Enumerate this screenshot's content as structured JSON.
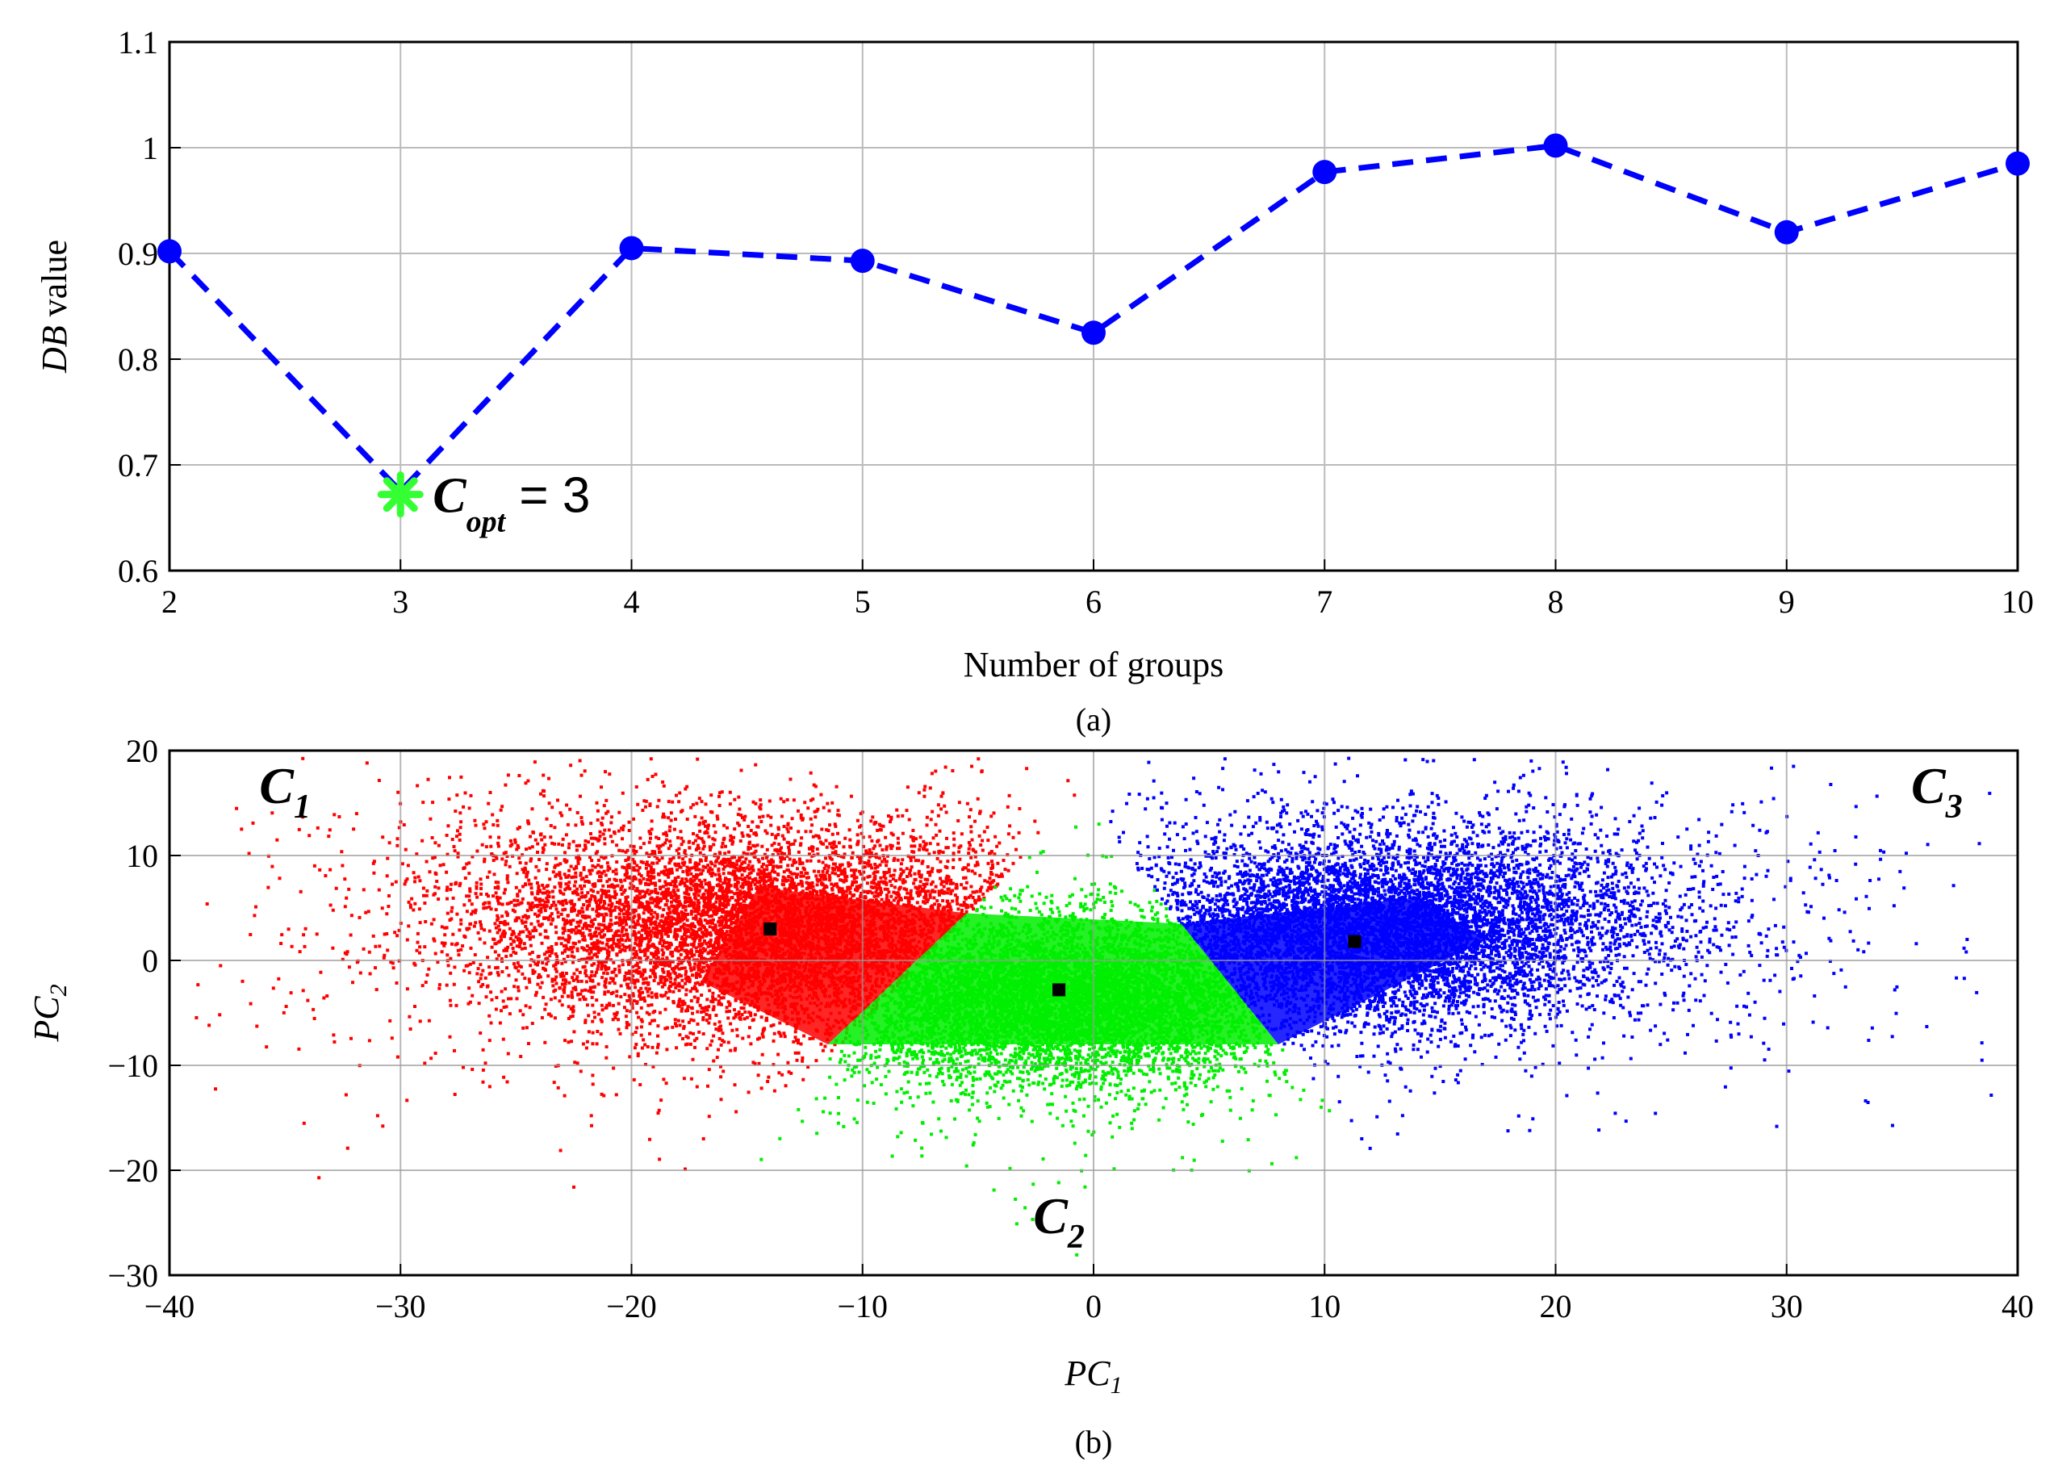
{
  "chart_data": [
    {
      "type": "line",
      "panel": "a",
      "caption": "(a)",
      "xlabel": "Number of groups",
      "ylabel_var": "DB",
      "ylabel_suffix": " value",
      "xlim": [
        2,
        10
      ],
      "ylim": [
        0.6,
        1.1
      ],
      "xticks": [
        2,
        3,
        4,
        5,
        6,
        7,
        8,
        9,
        10
      ],
      "yticks": [
        "0.6",
        "0.7",
        "0.8",
        "0.9",
        "1",
        "1.1"
      ],
      "grid": true,
      "series": [
        {
          "x": [
            2,
            3,
            4,
            5,
            6,
            7,
            8,
            9,
            10
          ],
          "y": [
            0.902,
            0.675,
            0.905,
            0.893,
            0.825,
            0.977,
            1.002,
            0.92,
            0.985
          ],
          "color": "#0000ff",
          "style": "dashed",
          "marker": "circle"
        }
      ],
      "annotation": {
        "marker_x": 3,
        "marker_y": 0.672,
        "marker_color": "#33ff33",
        "label_main": "C",
        "label_sub": "opt",
        "label_rest": " =  3"
      }
    },
    {
      "type": "scatter",
      "panel": "b",
      "caption": "(b)",
      "xlabel_main": "PC",
      "xlabel_sub": "1",
      "ylabel_main": "PC",
      "ylabel_sub": "2",
      "xlim": [
        -40,
        40
      ],
      "ylim": [
        -30,
        20
      ],
      "xticks": [
        "−40",
        "−30",
        "−20",
        "−10",
        "0",
        "10",
        "20",
        "30",
        "40"
      ],
      "yticks": [
        "−30",
        "−20",
        "−10",
        "0",
        "10",
        "20"
      ],
      "grid": true,
      "clusters": [
        {
          "label_main": "C",
          "label_sub": "1",
          "label_x": -35,
          "label_y": 15,
          "color": "#ff0000",
          "centroid": [
            -14,
            3
          ]
        },
        {
          "label_main": "C",
          "label_sub": "2",
          "label_x": -1.5,
          "label_y": -26,
          "color": "#00ee00",
          "centroid": [
            -1.5,
            -2.8
          ]
        },
        {
          "label_main": "C",
          "label_sub": "3",
          "label_x": 36.5,
          "label_y": 15,
          "color": "#0000ff",
          "centroid": [
            11.3,
            1.8
          ]
        }
      ]
    }
  ]
}
